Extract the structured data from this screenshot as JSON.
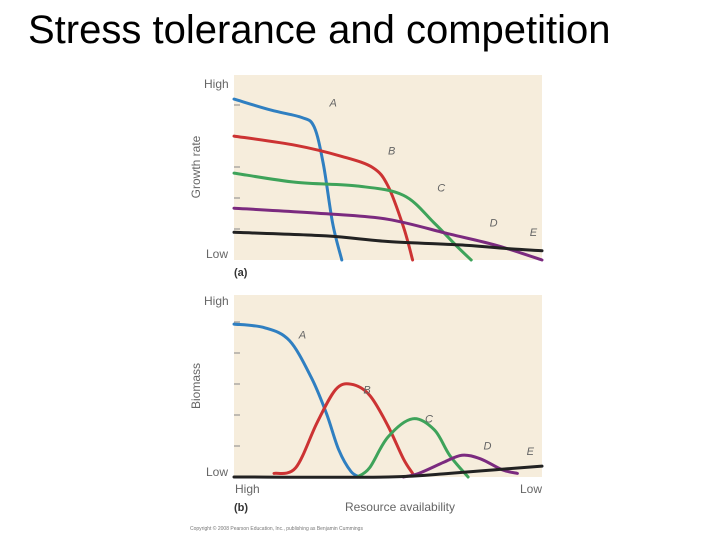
{
  "title": "Stress tolerance and competition",
  "credit": "Copyright © 2008 Pearson Education, Inc., publishing as Benjamin Cummings",
  "colors": {
    "panel_bg": "#f6eddc",
    "A": "#2f7fc1",
    "B": "#cc3333",
    "C": "#3ea35a",
    "D": "#7b2a7f",
    "E": "#222222"
  },
  "chart_data": [
    {
      "type": "line",
      "panel_label": "(a)",
      "ylabel": "Growth rate",
      "ytick_top": "High",
      "ytick_bottom": "Low",
      "xlabel": "",
      "xlim": [
        0,
        100
      ],
      "ylim": [
        0,
        100
      ],
      "grid": false,
      "series": [
        {
          "name": "A",
          "color_key": "A",
          "points": [
            [
              0,
              87
            ],
            [
              12,
              81
            ],
            [
              22,
              77
            ],
            [
              26,
              72
            ],
            [
              29,
              52
            ],
            [
              32,
              20
            ],
            [
              35,
              0
            ]
          ]
        },
        {
          "name": "B",
          "color_key": "B",
          "points": [
            [
              0,
              67
            ],
            [
              20,
              62
            ],
            [
              35,
              56
            ],
            [
              45,
              50
            ],
            [
              50,
              40
            ],
            [
              55,
              18
            ],
            [
              58,
              0
            ]
          ]
        },
        {
          "name": "C",
          "color_key": "C",
          "points": [
            [
              0,
              47
            ],
            [
              20,
              42
            ],
            [
              40,
              40
            ],
            [
              55,
              35
            ],
            [
              65,
              20
            ],
            [
              72,
              8
            ],
            [
              77,
              0
            ]
          ]
        },
        {
          "name": "D",
          "color_key": "D",
          "points": [
            [
              0,
              28
            ],
            [
              30,
              25
            ],
            [
              50,
              22
            ],
            [
              70,
              14
            ],
            [
              85,
              8
            ],
            [
              100,
              0
            ]
          ]
        },
        {
          "name": "E",
          "color_key": "E",
          "points": [
            [
              0,
              15
            ],
            [
              30,
              13
            ],
            [
              50,
              10
            ],
            [
              75,
              8
            ],
            [
              90,
              6
            ],
            [
              100,
              5
            ]
          ]
        }
      ],
      "labels": [
        {
          "text": "A",
          "x": 31,
          "y": 83
        },
        {
          "text": "B",
          "x": 50,
          "y": 57
        },
        {
          "text": "C",
          "x": 66,
          "y": 37
        },
        {
          "text": "D",
          "x": 83,
          "y": 18
        },
        {
          "text": "E",
          "x": 96,
          "y": 13
        }
      ]
    },
    {
      "type": "line",
      "panel_label": "(b)",
      "ylabel": "Biomass",
      "ytick_top": "High",
      "ytick_bottom": "Low",
      "xtick_left": "High",
      "xtick_right": "Low",
      "xlabel": "Resource availability",
      "xlim": [
        0,
        100
      ],
      "ylim": [
        0,
        100
      ],
      "grid": false,
      "series": [
        {
          "name": "A",
          "color_key": "A",
          "points": [
            [
              0,
              84
            ],
            [
              10,
              82
            ],
            [
              18,
              75
            ],
            [
              25,
              55
            ],
            [
              30,
              35
            ],
            [
              34,
              15
            ],
            [
              38,
              3
            ],
            [
              41,
              0
            ]
          ]
        },
        {
          "name": "B",
          "color_key": "B",
          "points": [
            [
              13,
              2
            ],
            [
              20,
              5
            ],
            [
              27,
              30
            ],
            [
              33,
              48
            ],
            [
              38,
              51
            ],
            [
              44,
              45
            ],
            [
              50,
              28
            ],
            [
              55,
              10
            ],
            [
              58,
              2
            ]
          ]
        },
        {
          "name": "C",
          "color_key": "C",
          "points": [
            [
              40,
              0
            ],
            [
              44,
              5
            ],
            [
              50,
              22
            ],
            [
              58,
              32
            ],
            [
              65,
              26
            ],
            [
              70,
              12
            ],
            [
              76,
              0
            ]
          ]
        },
        {
          "name": "D",
          "color_key": "D",
          "points": [
            [
              55,
              0
            ],
            [
              60,
              2
            ],
            [
              68,
              8
            ],
            [
              74,
              12
            ],
            [
              80,
              10
            ],
            [
              87,
              4
            ],
            [
              92,
              2
            ]
          ]
        },
        {
          "name": "E",
          "color_key": "E",
          "points": [
            [
              0,
              0
            ],
            [
              50,
              0
            ],
            [
              70,
              2
            ],
            [
              85,
              4
            ],
            [
              100,
              6
            ]
          ]
        }
      ],
      "labels": [
        {
          "text": "A",
          "x": 21,
          "y": 76
        },
        {
          "text": "B",
          "x": 42,
          "y": 46
        },
        {
          "text": "C",
          "x": 62,
          "y": 30
        },
        {
          "text": "D",
          "x": 81,
          "y": 15
        },
        {
          "text": "E",
          "x": 95,
          "y": 12
        }
      ]
    }
  ]
}
